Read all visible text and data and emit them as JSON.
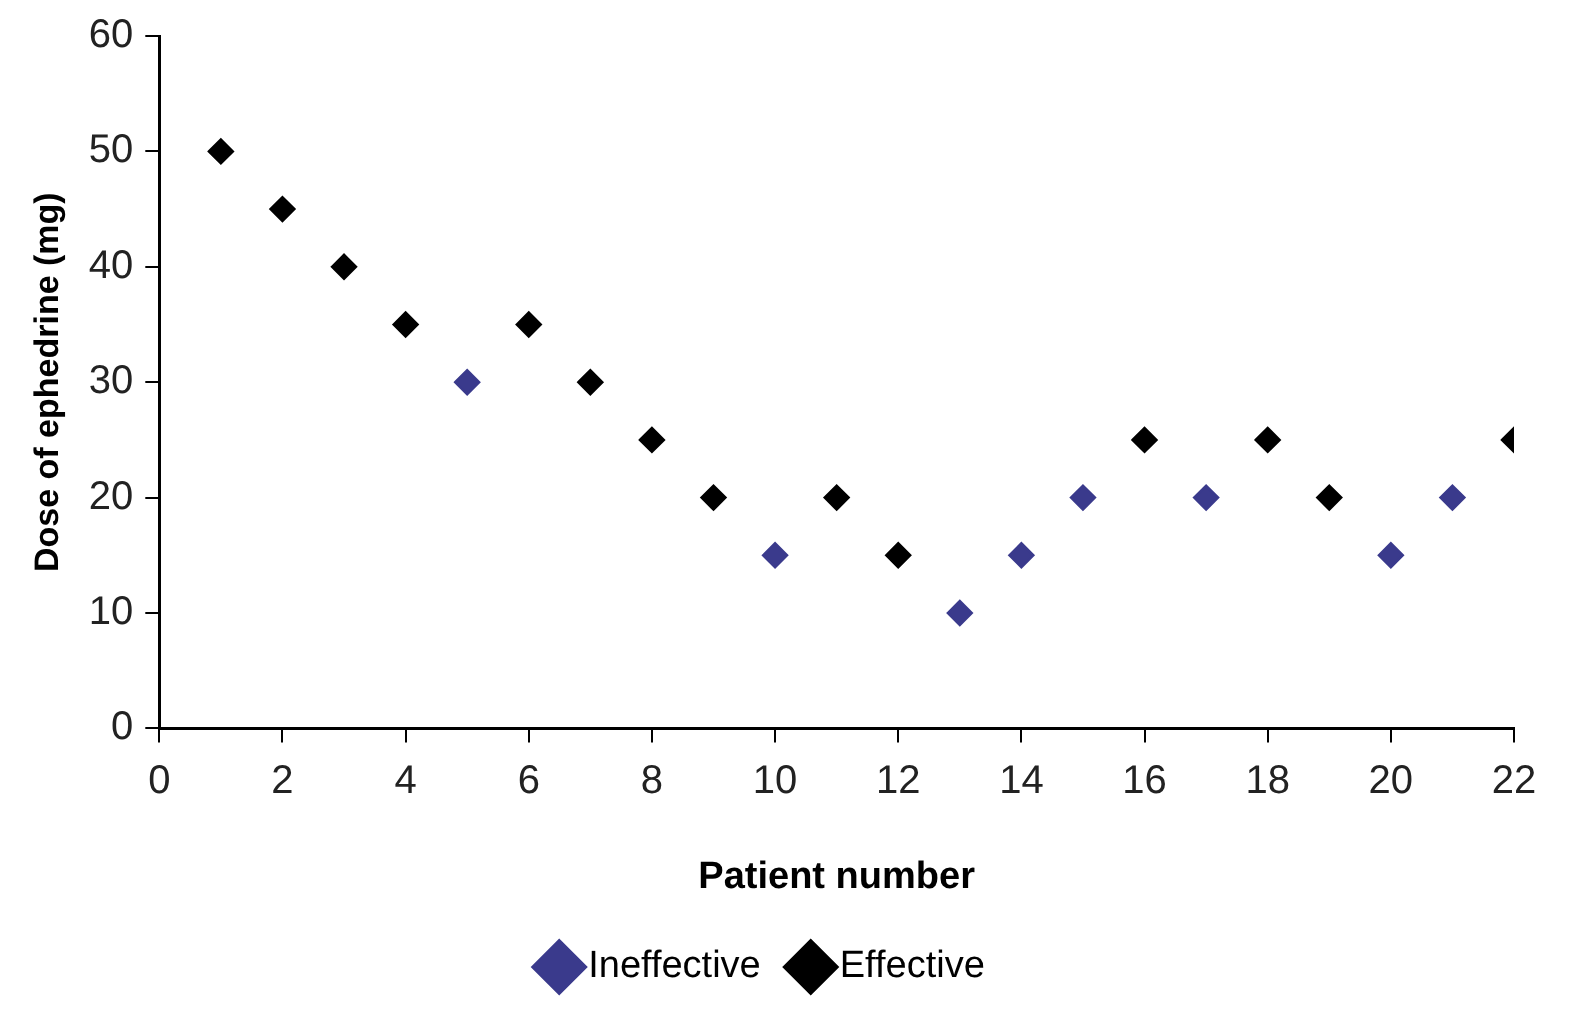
{
  "chart_data": {
    "type": "scatter",
    "xlabel": "Patient number",
    "ylabel": "Dose of ephedrine (mg)",
    "xlim": [
      0,
      22
    ],
    "xticks": [
      0,
      2,
      4,
      6,
      8,
      10,
      12,
      14,
      16,
      18,
      20,
      22
    ],
    "ylim": [
      0,
      60
    ],
    "yticks": [
      0,
      10,
      20,
      30,
      40,
      50,
      60
    ],
    "grid": false,
    "legend": "bottom",
    "marker": "diamond",
    "series": [
      {
        "name": "Ineffective",
        "color": "#3a3a8c",
        "x": [
          5,
          10,
          13,
          14,
          15,
          17,
          20,
          21
        ],
        "values": [
          30,
          15,
          10,
          15,
          20,
          20,
          15,
          20
        ]
      },
      {
        "name": "Effective",
        "color": "#000000",
        "x": [
          1,
          2,
          3,
          4,
          6,
          7,
          8,
          9,
          11,
          12,
          16,
          18,
          19,
          22
        ],
        "values": [
          50,
          45,
          40,
          35,
          35,
          30,
          25,
          20,
          20,
          15,
          25,
          25,
          20,
          25
        ]
      }
    ]
  }
}
